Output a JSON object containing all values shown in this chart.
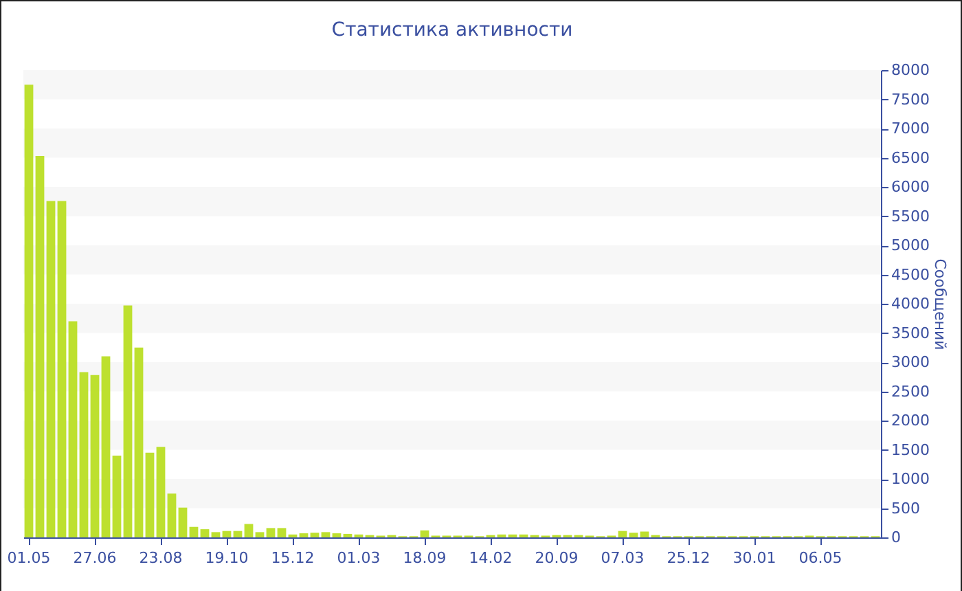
{
  "chart_data": {
    "type": "bar",
    "title": "Статистика активности",
    "ylabel": "Сообщений",
    "categories": [
      "01.05",
      null,
      null,
      null,
      null,
      null,
      "27.06",
      null,
      null,
      null,
      null,
      null,
      "23.08",
      null,
      null,
      null,
      null,
      null,
      "19.10",
      null,
      null,
      null,
      null,
      null,
      "15.12",
      null,
      null,
      null,
      null,
      null,
      "01.03",
      null,
      null,
      null,
      null,
      null,
      "18.09",
      null,
      null,
      null,
      null,
      null,
      "14.02",
      null,
      null,
      null,
      null,
      null,
      "20.09",
      null,
      null,
      null,
      null,
      null,
      "07.03",
      null,
      null,
      null,
      null,
      null,
      "25.12",
      null,
      null,
      null,
      null,
      null,
      "30.01",
      null,
      null,
      null,
      null,
      null,
      "06.05",
      null,
      null,
      null,
      null,
      null
    ],
    "values": [
      7750,
      6530,
      5760,
      5760,
      3700,
      2830,
      2780,
      3100,
      1400,
      3970,
      3250,
      1450,
      1550,
      750,
      510,
      180,
      140,
      90,
      110,
      110,
      230,
      90,
      160,
      160,
      50,
      70,
      80,
      90,
      70,
      60,
      50,
      40,
      30,
      40,
      20,
      20,
      120,
      30,
      30,
      30,
      30,
      20,
      40,
      50,
      50,
      50,
      40,
      30,
      40,
      40,
      40,
      30,
      20,
      30,
      110,
      80,
      100,
      40,
      20,
      20,
      20,
      20,
      20,
      20,
      20,
      20,
      20,
      20,
      20,
      20,
      20,
      30,
      20,
      20,
      20,
      20,
      20,
      20
    ],
    "color": "#bde02f",
    "ylim": [
      0,
      8000
    ],
    "yticks": [
      0,
      500,
      1000,
      1500,
      2000,
      2500,
      3000,
      3500,
      4000,
      4500,
      5000,
      5500,
      6000,
      6500,
      7000,
      7500,
      8000
    ],
    "bands": [
      {
        "axis": "y",
        "from": 500,
        "to": 1000,
        "color": "#f7f7f7"
      },
      {
        "axis": "y",
        "from": 1500,
        "to": 2000,
        "color": "#f7f7f7"
      },
      {
        "axis": "y",
        "from": 2500,
        "to": 3000,
        "color": "#f7f7f7"
      },
      {
        "axis": "y",
        "from": 3500,
        "to": 4000,
        "color": "#f7f7f7"
      },
      {
        "axis": "y",
        "from": 4500,
        "to": 5000,
        "color": "#f7f7f7"
      },
      {
        "axis": "y",
        "from": 5500,
        "to": 6000,
        "color": "#f7f7f7"
      },
      {
        "axis": "y",
        "from": 6500,
        "to": 7000,
        "color": "#f7f7f7"
      },
      {
        "axis": "y",
        "from": 7500,
        "to": 8000,
        "color": "#f7f7f7"
      }
    ]
  }
}
